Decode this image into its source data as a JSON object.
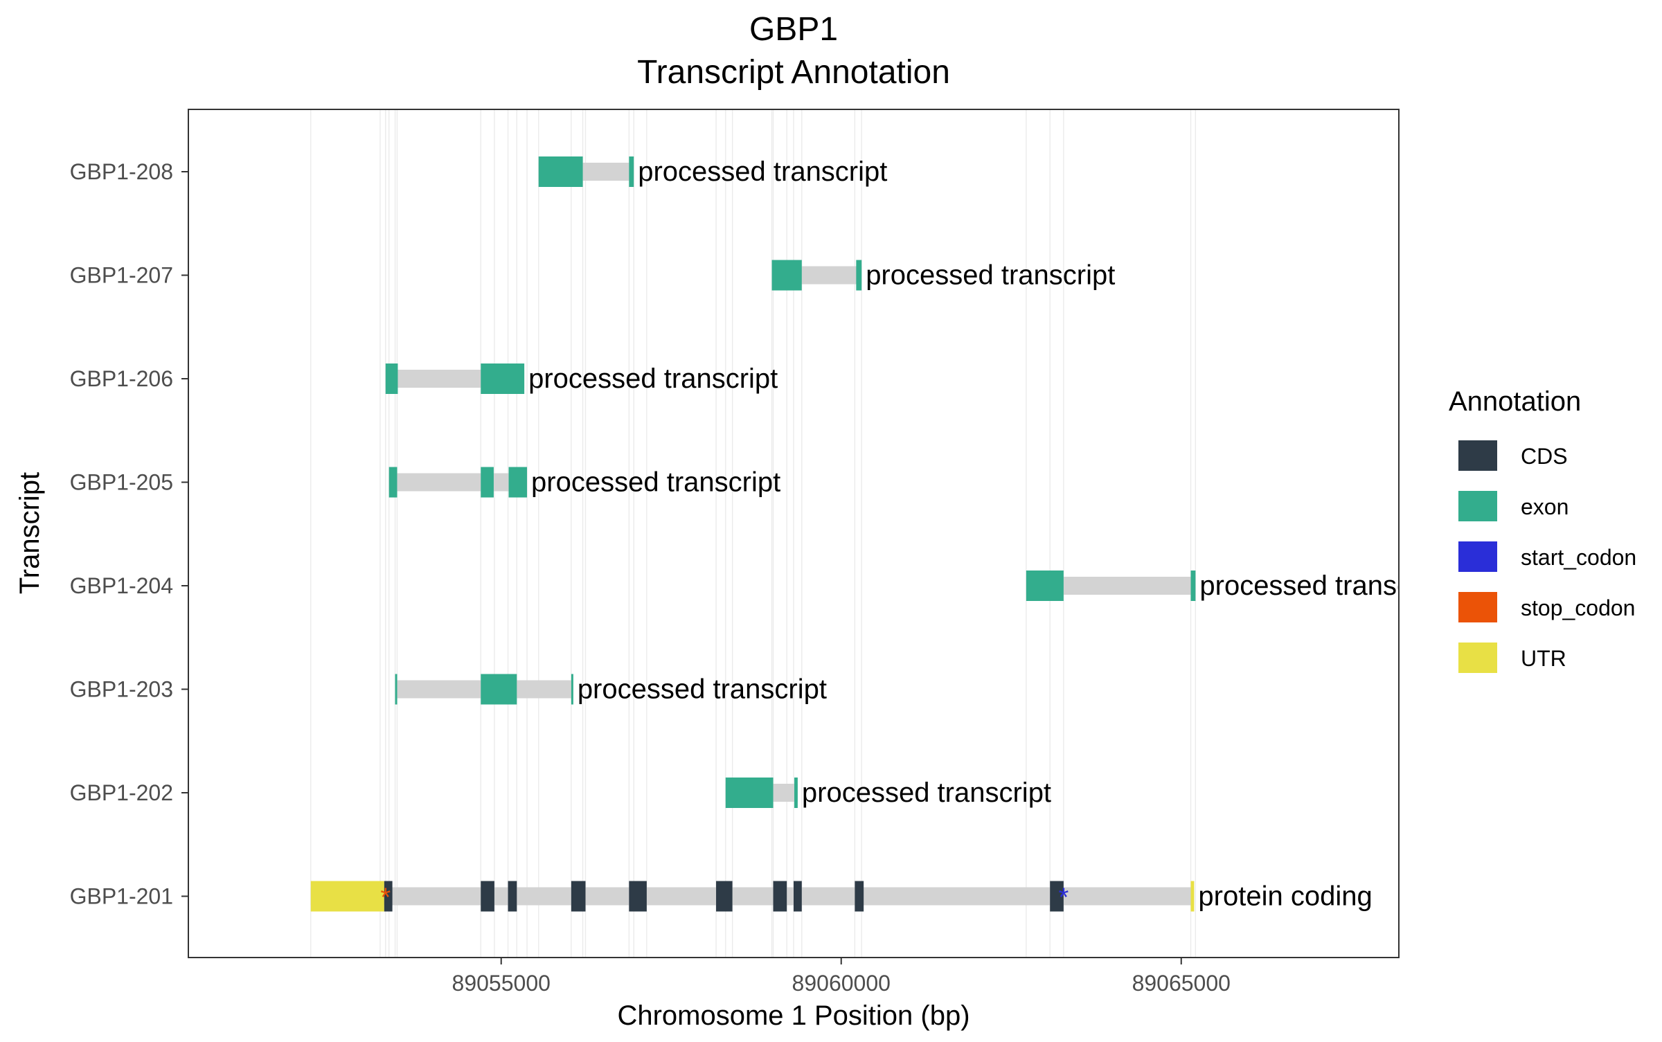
{
  "chart_data": {
    "type": "gene-track",
    "title": "GBP1",
    "subtitle": "Transcript Annotation",
    "xlabel": "Chromosome 1 Position (bp)",
    "ylabel": "Transcript",
    "xlim": [
      89050400,
      89068200
    ],
    "xticks": [
      89055000,
      89060000,
      89065000
    ],
    "xtick_labels": [
      "89055000",
      "89060000",
      "89065000"
    ],
    "grid": "vertical lines at feature boundaries",
    "legend": {
      "title": "Annotation",
      "position": "right",
      "items": [
        {
          "label": "CDS",
          "color": "#2E3B47"
        },
        {
          "label": "exon",
          "color": "#33AD8D"
        },
        {
          "label": "start_codon",
          "color": "#2A2ED8"
        },
        {
          "label": "stop_codon",
          "color": "#EB5307"
        },
        {
          "label": "UTR",
          "color": "#E8E045"
        }
      ]
    },
    "intron_color": "#D3D3D3",
    "transcripts": [
      {
        "name": "GBP1-208",
        "biotype": "processed transcript",
        "start": 89055550,
        "end": 89056950,
        "features": [
          {
            "type": "exon",
            "start": 89055550,
            "end": 89056200
          },
          {
            "type": "exon",
            "start": 89056880,
            "end": 89056950
          }
        ]
      },
      {
        "name": "GBP1-207",
        "biotype": "processed transcript",
        "start": 89058980,
        "end": 89060300,
        "features": [
          {
            "type": "exon",
            "start": 89058980,
            "end": 89059420
          },
          {
            "type": "exon",
            "start": 89060220,
            "end": 89060300
          }
        ]
      },
      {
        "name": "GBP1-206",
        "biotype": "processed transcript",
        "start": 89053300,
        "end": 89055340,
        "features": [
          {
            "type": "exon",
            "start": 89053300,
            "end": 89053480
          },
          {
            "type": "exon",
            "start": 89054700,
            "end": 89055340
          }
        ]
      },
      {
        "name": "GBP1-205",
        "biotype": "processed transcript",
        "start": 89053350,
        "end": 89055380,
        "features": [
          {
            "type": "exon",
            "start": 89053350,
            "end": 89053470
          },
          {
            "type": "exon",
            "start": 89054700,
            "end": 89054890
          },
          {
            "type": "exon",
            "start": 89055110,
            "end": 89055380
          }
        ]
      },
      {
        "name": "GBP1-204",
        "biotype": "processed transcript",
        "start": 89062720,
        "end": 89065210,
        "features": [
          {
            "type": "exon",
            "start": 89062720,
            "end": 89063270
          },
          {
            "type": "exon",
            "start": 89065140,
            "end": 89065210
          }
        ]
      },
      {
        "name": "GBP1-203",
        "biotype": "processed transcript",
        "start": 89053440,
        "end": 89056060,
        "features": [
          {
            "type": "exon",
            "start": 89053440,
            "end": 89053470
          },
          {
            "type": "exon",
            "start": 89054700,
            "end": 89055230
          },
          {
            "type": "exon",
            "start": 89056030,
            "end": 89056060
          }
        ]
      },
      {
        "name": "GBP1-202",
        "biotype": "processed transcript",
        "start": 89058300,
        "end": 89059360,
        "features": [
          {
            "type": "exon",
            "start": 89058300,
            "end": 89059000
          },
          {
            "type": "exon",
            "start": 89059310,
            "end": 89059360
          }
        ]
      },
      {
        "name": "GBP1-201",
        "biotype": "protein coding",
        "start": 89052200,
        "end": 89065190,
        "features": [
          {
            "type": "UTR",
            "start": 89052200,
            "end": 89053280
          },
          {
            "type": "CDS",
            "start": 89053280,
            "end": 89053400
          },
          {
            "type": "CDS",
            "start": 89054700,
            "end": 89054900
          },
          {
            "type": "CDS",
            "start": 89055100,
            "end": 89055230
          },
          {
            "type": "CDS",
            "start": 89056030,
            "end": 89056240
          },
          {
            "type": "CDS",
            "start": 89056880,
            "end": 89057140
          },
          {
            "type": "CDS",
            "start": 89058160,
            "end": 89058400
          },
          {
            "type": "CDS",
            "start": 89059000,
            "end": 89059200
          },
          {
            "type": "CDS",
            "start": 89059300,
            "end": 89059420
          },
          {
            "type": "CDS",
            "start": 89060200,
            "end": 89060330
          },
          {
            "type": "CDS",
            "start": 89063070,
            "end": 89063270
          },
          {
            "type": "UTR",
            "start": 89065140,
            "end": 89065190
          }
        ],
        "codons": [
          {
            "type": "stop_codon",
            "position": 89053300
          },
          {
            "type": "start_codon",
            "position": 89063270
          }
        ]
      }
    ],
    "gridlines_x": [
      89052200,
      89053220,
      89053300,
      89053350,
      89053440,
      89053470,
      89054700,
      89054900,
      89055100,
      89055230,
      89055380,
      89055550,
      89056030,
      89056200,
      89056240,
      89056880,
      89056950,
      89057140,
      89058160,
      89058300,
      89058400,
      89058980,
      89059000,
      89059200,
      89059300,
      89059420,
      89060200,
      89060300,
      89062720,
      89063070,
      89063270,
      89065140,
      89065210
    ]
  }
}
